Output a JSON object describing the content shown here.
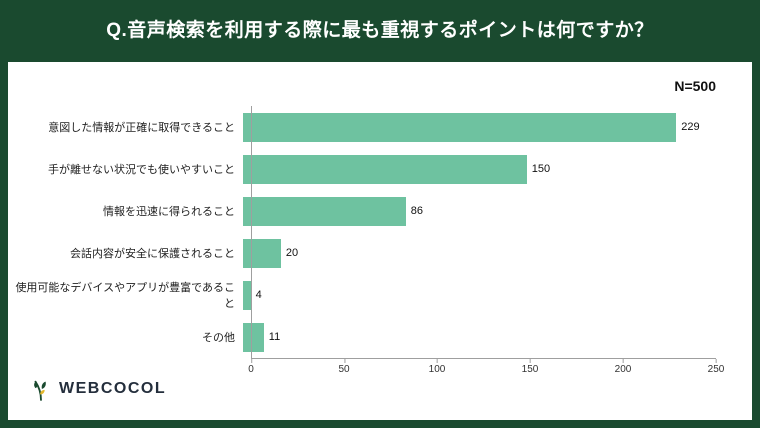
{
  "banner": {
    "title": "Q.音声検索を利用する際に最も重視するポイントは何ですか？"
  },
  "chart": {
    "n_label": "N=500"
  },
  "chart_data": {
    "type": "bar",
    "orientation": "horizontal",
    "title": "音声検索を利用する際に最も重視するポイント",
    "categories": [
      "意図した情報が正確に取得できること",
      "手が離せない状況でも使いやすいこと",
      "情報を迅速に得られること",
      "会話内容が安全に保護されること",
      "使用可能なデバイスやアプリが豊富であること",
      "その他"
    ],
    "values": [
      229,
      150,
      86,
      20,
      4,
      11
    ],
    "xlim": [
      0,
      250
    ],
    "x_ticks": [
      0,
      50,
      100,
      150,
      200,
      250
    ],
    "xlabel": "",
    "ylabel": "",
    "grid": false,
    "legend": false,
    "value_labels": true,
    "bar_color": "#6ec2a0",
    "sample_size": 500
  },
  "footer": {
    "logo_text": "WEBCOCOL",
    "logo_icon": "sprout-icon"
  },
  "colors": {
    "banner_background": "#1a4a2f",
    "panel_background": "#ffffff",
    "bar": "#6ec2a0",
    "axis": "#9f9f9f",
    "logo_text": "#242e3c",
    "logo_accent": "#e3b82e"
  }
}
